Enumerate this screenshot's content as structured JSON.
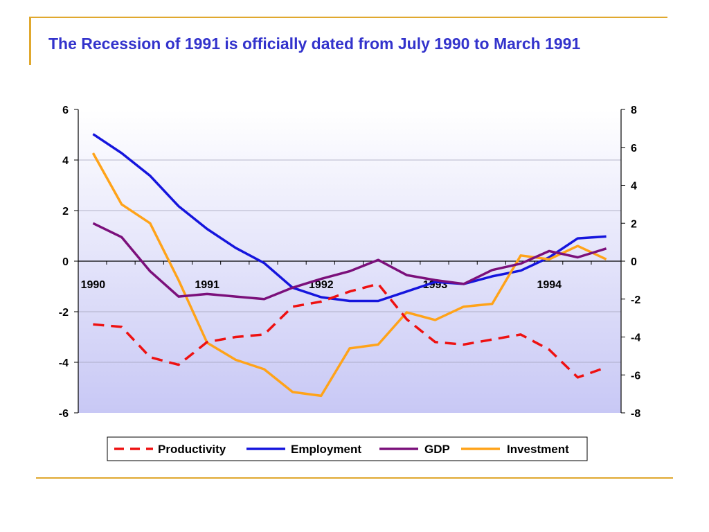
{
  "title": "The Recession of 1991 is officially dated from July 1990 to March 1991",
  "colors": {
    "accent": "#E0A82E",
    "title": "#3333CC",
    "plot_top": "#FFFFFF",
    "plot_bottom": "#C8C8F5"
  },
  "chart_data": {
    "type": "line",
    "x": [
      1990.0,
      1990.25,
      1990.5,
      1990.75,
      1991.0,
      1991.25,
      1991.5,
      1991.75,
      1992.0,
      1992.25,
      1992.5,
      1992.75,
      1993.0,
      1993.25,
      1993.5,
      1993.75,
      1994.0,
      1994.25,
      1994.5
    ],
    "xlim": [
      1990,
      1994.5
    ],
    "x_ticks": [
      "1990",
      "1991",
      "1992",
      "1993",
      "1994"
    ],
    "y_left": {
      "ylim": [
        -6,
        6
      ],
      "ticks": [
        "6",
        "4",
        "2",
        "0",
        "-2",
        "-4",
        "-6"
      ]
    },
    "y_right": {
      "ylim": [
        -8,
        8
      ],
      "ticks": [
        "8",
        "6",
        "4",
        "2",
        "0",
        "-2",
        "-4",
        "-6",
        "-8"
      ]
    },
    "legend_position": "bottom",
    "grid": true,
    "series": [
      {
        "name": "Productivity",
        "axis": "left",
        "color": "#EE1111",
        "dashed": true,
        "values": [
          -2.5,
          -2.6,
          -3.8,
          -4.1,
          -3.2,
          -3.0,
          -2.9,
          -1.8,
          -1.6,
          -1.2,
          -0.9,
          -2.3,
          -3.2,
          -3.3,
          -3.1,
          -2.9,
          -3.5,
          -4.6,
          -4.2
        ]
      },
      {
        "name": "Employment",
        "axis": "right",
        "color": "#1515DD",
        "dashed": false,
        "values": [
          6.7,
          5.7,
          4.5,
          2.9,
          1.7,
          0.7,
          -0.1,
          -1.4,
          -1.9,
          -2.1,
          -2.1,
          -1.6,
          -1.1,
          -1.2,
          -0.8,
          -0.5,
          0.2,
          1.2,
          1.3
        ]
      },
      {
        "name": "GDP",
        "axis": "left",
        "color": "#7B107B",
        "dashed": false,
        "values": [
          1.5,
          0.95,
          -0.4,
          -1.4,
          -1.3,
          -1.4,
          -1.5,
          -1.05,
          -0.7,
          -0.4,
          0.05,
          -0.55,
          -0.75,
          -0.9,
          -0.35,
          -0.1,
          0.4,
          0.15,
          0.5
        ]
      },
      {
        "name": "Investment",
        "axis": "right",
        "color": "#FFA319",
        "dashed": false,
        "values": [
          5.7,
          3.0,
          2.0,
          -1.0,
          -4.3,
          -5.2,
          -5.7,
          -6.9,
          -7.1,
          -4.6,
          -4.4,
          -2.7,
          -3.1,
          -2.4,
          -2.25,
          0.3,
          0.1,
          0.8,
          0.1
        ]
      }
    ]
  }
}
